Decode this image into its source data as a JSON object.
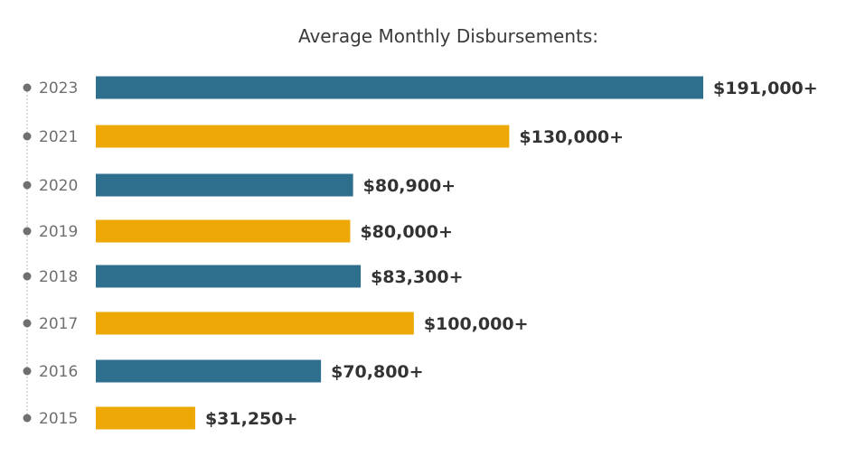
{
  "chart_data": {
    "type": "bar",
    "orientation": "horizontal",
    "title": "Average Monthly Disbursements:",
    "categories": [
      "2023",
      "2021",
      "2020",
      "2019",
      "2018",
      "2017",
      "2016",
      "2015"
    ],
    "values": [
      191000,
      130000,
      80900,
      80000,
      83300,
      100000,
      70800,
      31250
    ],
    "value_labels": [
      "$191,000+",
      "$130,000+",
      "$80,900+",
      "$80,000+",
      "$83,300+",
      "$100,000+",
      "$70,800+",
      "$31,250+"
    ],
    "bar_colors": [
      "#2e6f8e",
      "#eda806",
      "#2e6f8e",
      "#eda806",
      "#2e6f8e",
      "#eda806",
      "#2e6f8e",
      "#eda806"
    ],
    "xlim": [
      0,
      191000
    ],
    "xlabel": "",
    "ylabel": "",
    "grid": false,
    "legend": "none"
  },
  "colors": {
    "teal": "#2e6f8e",
    "gold": "#eda806",
    "timeline_line": "#bdbdbd",
    "timeline_dot": "#6f6f6f"
  }
}
